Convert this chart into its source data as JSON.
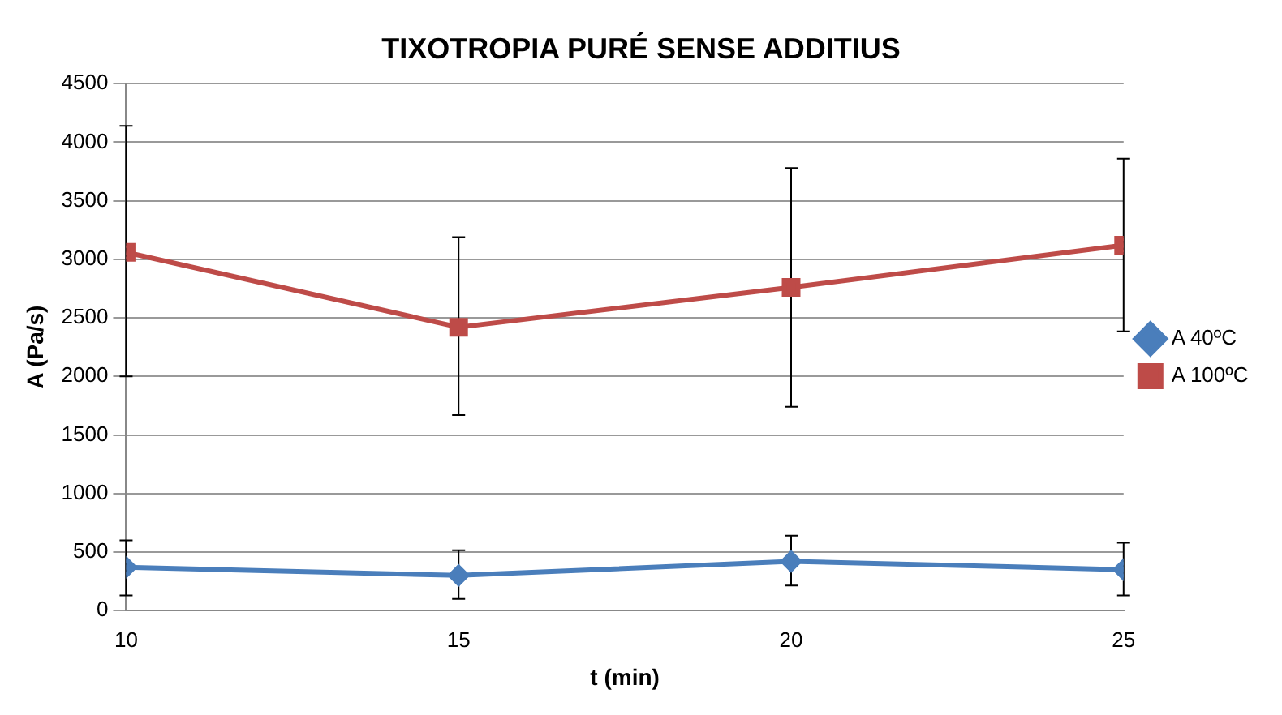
{
  "chart_data": {
    "type": "line",
    "title": "TIXOTROPIA PURÉ SENSE ADDITIUS",
    "xlabel": "t (min)",
    "ylabel": "A (Pa/s)",
    "x": [
      10,
      15,
      20,
      25
    ],
    "xlim": [
      10,
      25
    ],
    "xticks": [
      10,
      15,
      20,
      25
    ],
    "ylim": [
      0,
      4500
    ],
    "yticks": [
      0,
      500,
      1000,
      1500,
      2000,
      2500,
      3000,
      3500,
      4000,
      4500
    ],
    "grid": "y",
    "legend": "right",
    "series": [
      {
        "name": "A 40ºC",
        "color": "#4a7ebb",
        "marker": "diamond",
        "values": [
          370,
          300,
          420,
          350
        ],
        "errors": [
          [
            130,
            600
          ],
          [
            100,
            515
          ],
          [
            215,
            640
          ],
          [
            130,
            580
          ]
        ]
      },
      {
        "name": "A 100ºC",
        "color": "#be4b48",
        "marker": "square",
        "values": [
          3060,
          2420,
          2760,
          3120
        ],
        "errors": [
          [
            2000,
            4140
          ],
          [
            1670,
            3190
          ],
          [
            1740,
            3780
          ],
          [
            2385,
            3860
          ]
        ]
      }
    ]
  }
}
